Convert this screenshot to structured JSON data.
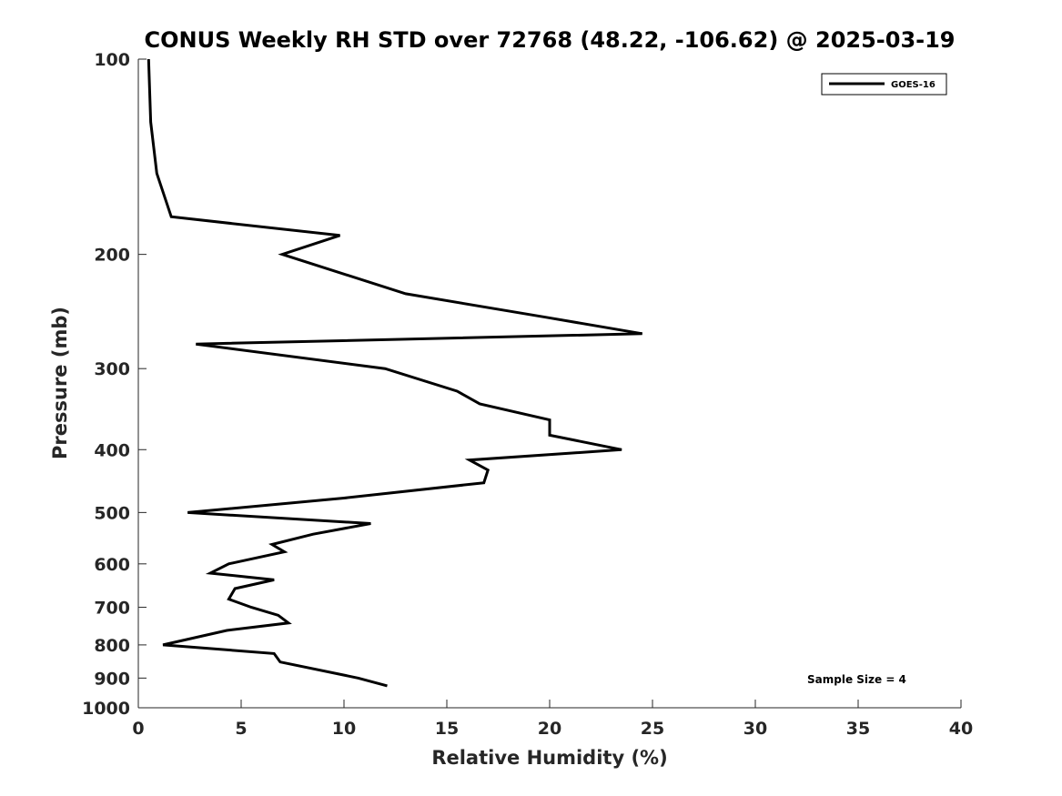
{
  "chart_data": {
    "type": "line",
    "title": "CONUS Weekly RH STD over 72768 (48.22, -106.62) @ 2025-03-19",
    "xlabel": "Relative Humidity (%)",
    "ylabel": "Pressure (mb)",
    "xlim": [
      0,
      40
    ],
    "ylim": [
      100,
      1000
    ],
    "y_scale": "log",
    "y_reversed": true,
    "grid": false,
    "x_ticks": [
      0,
      5,
      10,
      15,
      20,
      25,
      30,
      35,
      40
    ],
    "x_tick_labels": [
      "0",
      "5",
      "10",
      "15",
      "20",
      "25",
      "30",
      "35",
      "40"
    ],
    "y_ticks": [
      100,
      200,
      300,
      400,
      500,
      600,
      700,
      800,
      900,
      1000
    ],
    "y_tick_labels": [
      "100",
      "200",
      "300",
      "400",
      "500",
      "600",
      "700",
      "800",
      "900",
      "1000"
    ],
    "legend_position": "top-right",
    "annotation": "Sample Size = 4",
    "series": [
      {
        "name": "GOES-16",
        "color": "#000000",
        "points": [
          {
            "rh": 0.5,
            "p": 100
          },
          {
            "rh": 0.6,
            "p": 125
          },
          {
            "rh": 0.9,
            "p": 150
          },
          {
            "rh": 1.6,
            "p": 175
          },
          {
            "rh": 9.8,
            "p": 187
          },
          {
            "rh": 7.0,
            "p": 200
          },
          {
            "rh": 13.0,
            "p": 230
          },
          {
            "rh": 19.8,
            "p": 250
          },
          {
            "rh": 24.5,
            "p": 265
          },
          {
            "rh": 2.8,
            "p": 275
          },
          {
            "rh": 12.0,
            "p": 300
          },
          {
            "rh": 15.5,
            "p": 325
          },
          {
            "rh": 16.6,
            "p": 340
          },
          {
            "rh": 20.0,
            "p": 360
          },
          {
            "rh": 20.0,
            "p": 380
          },
          {
            "rh": 23.5,
            "p": 400
          },
          {
            "rh": 16.1,
            "p": 415
          },
          {
            "rh": 17.0,
            "p": 430
          },
          {
            "rh": 16.8,
            "p": 450
          },
          {
            "rh": 10.0,
            "p": 475
          },
          {
            "rh": 2.4,
            "p": 500
          },
          {
            "rh": 11.3,
            "p": 520
          },
          {
            "rh": 8.5,
            "p": 540
          },
          {
            "rh": 6.5,
            "p": 560
          },
          {
            "rh": 7.1,
            "p": 575
          },
          {
            "rh": 4.4,
            "p": 600
          },
          {
            "rh": 3.5,
            "p": 620
          },
          {
            "rh": 6.6,
            "p": 635
          },
          {
            "rh": 4.7,
            "p": 655
          },
          {
            "rh": 4.4,
            "p": 680
          },
          {
            "rh": 5.5,
            "p": 700
          },
          {
            "rh": 6.8,
            "p": 720
          },
          {
            "rh": 7.3,
            "p": 740
          },
          {
            "rh": 4.3,
            "p": 760
          },
          {
            "rh": 1.2,
            "p": 800
          },
          {
            "rh": 6.6,
            "p": 825
          },
          {
            "rh": 6.9,
            "p": 850
          },
          {
            "rh": 10.7,
            "p": 900
          },
          {
            "rh": 12.1,
            "p": 925
          }
        ]
      }
    ]
  }
}
